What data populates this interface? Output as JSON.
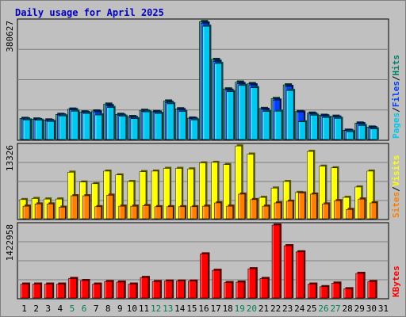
{
  "title": "Daily usage for April 2025",
  "colors": {
    "title": "#0000c0",
    "hits": "#00806a",
    "files": "#0040ff",
    "pages": "#00c8f0",
    "visits": "#ffff00",
    "sites": "#ff8000",
    "kbytes": "#ff0000",
    "weekend_label": "#00805a",
    "weekday_label": "#000000",
    "panel_bg": "#c0c0c0",
    "grid": "#808080"
  },
  "chart_data": [
    {
      "type": "bar",
      "panel": "top",
      "ymax_label": "380627",
      "ymax": 380627,
      "side_label": [
        "Pages",
        "/",
        "Files",
        "/",
        "Hits"
      ],
      "categories": [
        "1",
        "2",
        "3",
        "4",
        "5",
        "6",
        "7",
        "8",
        "9",
        "10",
        "11",
        "12",
        "13",
        "14",
        "15",
        "16",
        "17",
        "18",
        "19",
        "20",
        "21",
        "22",
        "23",
        "24",
        "25",
        "26",
        "27",
        "28",
        "29",
        "30",
        "31"
      ],
      "weekend_days": [
        "5",
        "6",
        "12",
        "13",
        "19",
        "20",
        "26",
        "27"
      ],
      "series": [
        {
          "name": "Hits",
          "values": [
            68000,
            66000,
            63000,
            81000,
            98000,
            89000,
            92000,
            114000,
            81000,
            74000,
            94000,
            90000,
            124000,
            99000,
            69000,
            380000,
            258000,
            163000,
            185000,
            180000,
            100000,
            132000,
            176000,
            90000,
            85000,
            78000,
            75000,
            30000,
            53000,
            40000,
            null
          ]
        },
        {
          "name": "Files",
          "values": [
            66000,
            64000,
            61000,
            79000,
            96000,
            87000,
            89000,
            109000,
            78000,
            71000,
            91000,
            88000,
            119000,
            96000,
            67000,
            375000,
            252000,
            159000,
            180000,
            176000,
            97000,
            127000,
            171000,
            88000,
            82000,
            76000,
            72000,
            29000,
            51000,
            38000,
            null
          ]
        },
        {
          "name": "Pages",
          "values": [
            63000,
            62000,
            58000,
            76000,
            91000,
            84000,
            79000,
            103000,
            75000,
            67000,
            89000,
            84000,
            115000,
            90000,
            63000,
            365000,
            245000,
            154000,
            174000,
            167000,
            90000,
            91000,
            158000,
            57000,
            78000,
            71000,
            68000,
            25000,
            45000,
            34000,
            null
          ]
        }
      ]
    },
    {
      "type": "bar",
      "panel": "middle",
      "ymax_label": "13326",
      "ymax": 13326,
      "side_label": [
        "Sites",
        "/",
        "Visits"
      ],
      "categories": [
        "1",
        "2",
        "3",
        "4",
        "5",
        "6",
        "7",
        "8",
        "9",
        "10",
        "11",
        "12",
        "13",
        "14",
        "15",
        "16",
        "17",
        "18",
        "19",
        "20",
        "21",
        "22",
        "23",
        "24",
        "25",
        "26",
        "27",
        "28",
        "29",
        "30",
        "31"
      ],
      "series": [
        {
          "name": "Visits",
          "values": [
            3500,
            3700,
            3600,
            3600,
            8500,
            6700,
            6400,
            8700,
            8000,
            6800,
            8600,
            8700,
            9200,
            9200,
            9100,
            10200,
            10300,
            9900,
            13300,
            11800,
            3900,
            5600,
            6800,
            4800,
            12300,
            9600,
            9300,
            3900,
            5800,
            8700,
            null
          ]
        },
        {
          "name": "Sites",
          "values": [
            2300,
            2700,
            2700,
            2100,
            4200,
            4200,
            2200,
            4300,
            2300,
            2300,
            2400,
            2200,
            2200,
            2200,
            2200,
            2300,
            2900,
            2300,
            4500,
            3500,
            2300,
            2900,
            3200,
            4700,
            4500,
            2700,
            3300,
            1700,
            3600,
            2900,
            null
          ]
        }
      ]
    },
    {
      "type": "bar",
      "panel": "bottom",
      "ymax_label": "1422958",
      "ymax": 1422958,
      "side_label": [
        "KBytes"
      ],
      "categories": [
        "1",
        "2",
        "3",
        "4",
        "5",
        "6",
        "7",
        "8",
        "9",
        "10",
        "11",
        "12",
        "13",
        "14",
        "15",
        "16",
        "17",
        "18",
        "19",
        "20",
        "21",
        "22",
        "23",
        "24",
        "25",
        "26",
        "27",
        "28",
        "29",
        "30",
        "31"
      ],
      "series": [
        {
          "name": "KBytes",
          "values": [
            270000,
            270000,
            270000,
            270000,
            380000,
            340000,
            270000,
            320000,
            310000,
            270000,
            400000,
            320000,
            330000,
            330000,
            330000,
            860000,
            540000,
            300000,
            310000,
            570000,
            380000,
            1422958,
            1020000,
            900000,
            270000,
            220000,
            290000,
            180000,
            480000,
            320000,
            null
          ]
        }
      ]
    }
  ]
}
